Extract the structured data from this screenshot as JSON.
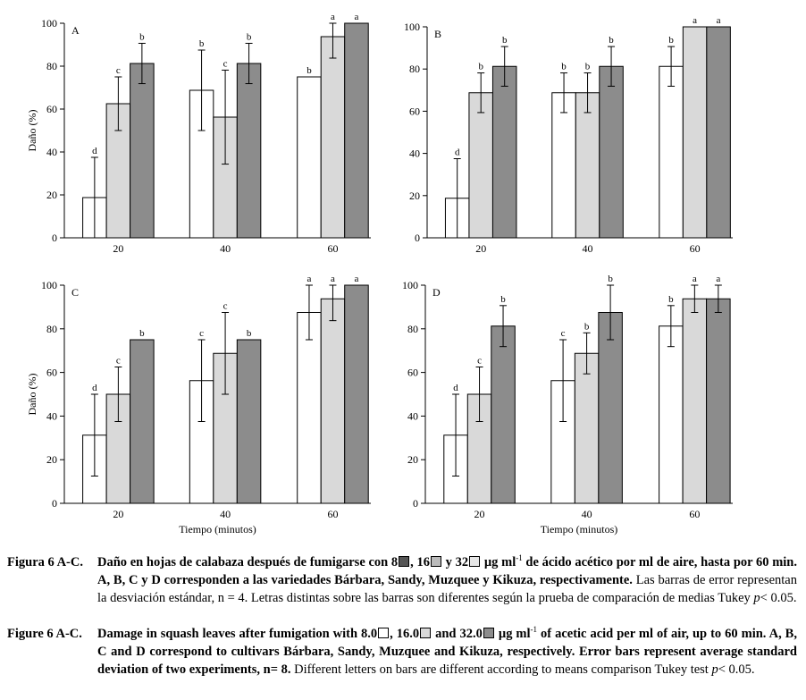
{
  "figure": {
    "y_axis_label": "Daño (%)",
    "x_axis_label": "Tiempo (minutos)",
    "y_ticks": [
      "0",
      "20",
      "40",
      "60",
      "80",
      "100"
    ],
    "x_ticks": [
      "20",
      "40",
      "60"
    ],
    "series_colors": [
      "#ffffff",
      "#d9d9d9",
      "#8c8c8c"
    ]
  },
  "chart_data": [
    {
      "type": "bar",
      "panel": "A",
      "ylim": [
        0,
        100
      ],
      "categories": [
        "20",
        "40",
        "60"
      ],
      "series": [
        {
          "name": "8.0",
          "values": [
            18.75,
            68.75,
            75
          ],
          "errors": [
            18.75,
            18.75,
            0
          ],
          "letters": [
            "d",
            "b",
            "b"
          ]
        },
        {
          "name": "16.0",
          "values": [
            62.5,
            56.25,
            93.75
          ],
          "errors": [
            12.5,
            21.9,
            10
          ],
          "letters": [
            "c",
            "c",
            "a"
          ]
        },
        {
          "name": "32.0",
          "values": [
            81.25,
            81.25,
            100
          ],
          "errors": [
            9.4,
            9.4,
            0
          ],
          "letters": [
            "b",
            "b",
            "a"
          ]
        }
      ]
    },
    {
      "type": "bar",
      "panel": "B",
      "ylim": [
        0,
        100
      ],
      "categories": [
        "20",
        "40",
        "60"
      ],
      "series": [
        {
          "name": "8.0",
          "values": [
            18.75,
            68.75,
            81.25
          ],
          "errors": [
            18.75,
            9.4,
            9.4
          ],
          "letters": [
            "d",
            "b",
            "b"
          ]
        },
        {
          "name": "16.0",
          "values": [
            68.75,
            68.75,
            100
          ],
          "errors": [
            9.4,
            9.4,
            0
          ],
          "letters": [
            "b",
            "b",
            "a"
          ]
        },
        {
          "name": "32.0",
          "values": [
            81.25,
            81.25,
            100
          ],
          "errors": [
            9.4,
            9.4,
            0
          ],
          "letters": [
            "b",
            "b",
            "a"
          ]
        }
      ]
    },
    {
      "type": "bar",
      "panel": "C",
      "ylim": [
        0,
        100
      ],
      "categories": [
        "20",
        "40",
        "60"
      ],
      "series": [
        {
          "name": "8.0",
          "values": [
            31.25,
            56.25,
            87.5
          ],
          "errors": [
            18.75,
            18.75,
            12.5
          ],
          "letters": [
            "d",
            "c",
            "a"
          ]
        },
        {
          "name": "16.0",
          "values": [
            50,
            68.75,
            93.75
          ],
          "errors": [
            12.5,
            18.75,
            10
          ],
          "letters": [
            "c",
            "c",
            "a"
          ]
        },
        {
          "name": "32.0",
          "values": [
            75,
            75,
            100
          ],
          "errors": [
            0,
            0,
            0
          ],
          "letters": [
            "b",
            "b",
            "a"
          ]
        }
      ]
    },
    {
      "type": "bar",
      "panel": "D",
      "ylim": [
        0,
        100
      ],
      "categories": [
        "20",
        "40",
        "60"
      ],
      "series": [
        {
          "name": "8.0",
          "values": [
            31.25,
            56.25,
            81.25
          ],
          "errors": [
            18.75,
            18.75,
            9.4
          ],
          "letters": [
            "d",
            "c",
            "b"
          ]
        },
        {
          "name": "16.0",
          "values": [
            50,
            68.75,
            93.75
          ],
          "errors": [
            12.5,
            9.4,
            6.25
          ],
          "letters": [
            "c",
            "b",
            "a"
          ]
        },
        {
          "name": "32.0",
          "values": [
            81.25,
            87.5,
            93.75
          ],
          "errors": [
            9.4,
            12.5,
            6.25
          ],
          "letters": [
            "b",
            "b",
            "a"
          ]
        }
      ]
    }
  ],
  "caption_es": {
    "label": "Figura 6 A-C.",
    "bold_1": "Daño en hojas de calabaza después de fumigarse con 8",
    "bold_2": ", 16",
    "bold_3": " y 32",
    "bold_4": " µg ml",
    "sup": "-1",
    "bold_5": " de ácido acético por ml de aire, hasta por 60 min. A, B, C y D corresponden a las variedades Bárbara, Sandy, Muzquee y Kikuza, respectivamente.",
    "normal": " Las barras de error representan la desviación estándar, n = 4. Letras distintas sobre las barras son diferentes según la prueba de comparación de medias Tukey ",
    "p": "p",
    "end": "< 0.05."
  },
  "caption_en": {
    "label": "Figure 6 A-C.",
    "bold_1": "Damage in squash leaves after fumigation with 8.0",
    "bold_2": ", 16.0",
    "bold_3": " and 32.0",
    "bold_4": " µg ml",
    "sup": "-1",
    "bold_5": " of acetic acid per ml of air, up to 60 min. A, B, C and D correspond to cultivars Bárbara, Sandy, Muzquee and Kikuza, respectively. Error bars represent average standard deviation of two experiments, n= 8.",
    "normal": " Different letters on bars are different according to means comparison Tukey test ",
    "p": "p",
    "end": "< 0.05."
  }
}
